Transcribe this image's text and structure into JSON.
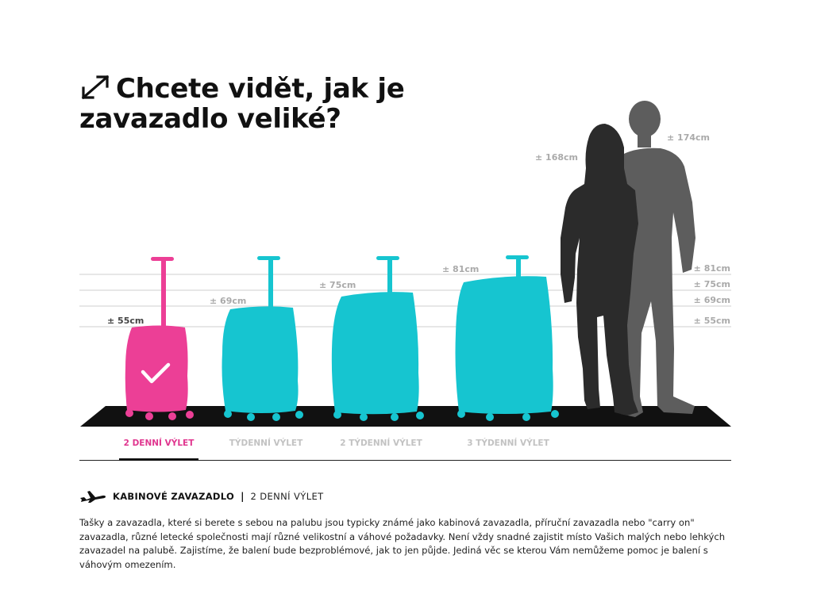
{
  "header": {
    "title": "Chcete vidět, jak je zavazadlo veliké?",
    "icon": "resize-arrow-icon"
  },
  "people": [
    {
      "label": "± 168cm",
      "height_cm": 168,
      "color": "#2b2b2b"
    },
    {
      "label": "± 174cm",
      "height_cm": 174,
      "color": "#5d5d5d"
    }
  ],
  "suitcases": [
    {
      "label": "± 55cm",
      "height_cm": 55,
      "color": "#ec3f96",
      "selected": true
    },
    {
      "label": "± 69cm",
      "height_cm": 69,
      "color": "#16c5d0",
      "selected": false
    },
    {
      "label": "± 75cm",
      "height_cm": 75,
      "color": "#16c5d0",
      "selected": false
    },
    {
      "label": "± 81cm",
      "height_cm": 81,
      "color": "#16c5d0",
      "selected": false
    }
  ],
  "scale_labels": [
    "± 81cm",
    "± 75cm",
    "± 69cm",
    "± 55cm"
  ],
  "tabs": [
    {
      "label": "2 DENNÍ VÝLET",
      "active": true
    },
    {
      "label": "TÝDENNÍ VÝLET",
      "active": false
    },
    {
      "label": "2 TÝDENNÍ VÝLET",
      "active": false
    },
    {
      "label": "3 TÝDENNÍ VÝLET",
      "active": false
    }
  ],
  "info": {
    "icon": "airplane-icon",
    "bag_type": "KABINOVÉ ZAVAZADLO",
    "separator": "|",
    "trip": "2 DENNÍ VÝLET",
    "description": "Tašky a zavazadla, které si berete s sebou na palubu jsou typicky známé jako kabinová zavazadla, příruční zavazadla nebo \"carry on\" zavazadla, různé letecké společnosti mají různé velikostní a váhové požadavky. Není vždy snadné zajistit místo Vašich malých nebo lehkých zavazadel na palubě. Zajistíme, že balení bude bezproblémové, jak to jen půjde. Jediná věc se kterou Vám nemůžeme pomoc je balení s váhovým omezením."
  },
  "colors": {
    "accent": "#e0368f",
    "suitcase_selected": "#ec3f96",
    "suitcase": "#16c5d0",
    "floor": "#111111",
    "guide": "#cfcfcf",
    "muted": "#c2c2c2"
  }
}
